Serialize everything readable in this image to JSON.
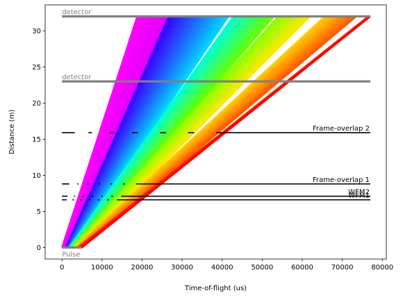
{
  "chart_data": {
    "type": "line",
    "xlabel": "Time-of-flight (us)",
    "ylabel": "Distance (m)",
    "xlim": [
      -4200,
      81000
    ],
    "ylim": [
      -1.6,
      33.6
    ],
    "xticks": [
      0,
      10000,
      20000,
      30000,
      40000,
      50000,
      60000,
      70000,
      80000
    ],
    "yticks": [
      0,
      5,
      10,
      15,
      20,
      25,
      30
    ],
    "grid": false,
    "source_pulse": {
      "label": "Pulse",
      "distance": 0,
      "t_start": 0,
      "t_end": 5000
    },
    "detectors": [
      {
        "label": "detector",
        "distance": 23,
        "t_start": 0,
        "t_end": 77000
      },
      {
        "label": "detector",
        "distance": 32,
        "t_start": 0,
        "t_end": 77000
      }
    ],
    "choppers": [
      {
        "label": "WFM1",
        "distance": 6.6,
        "t_start": 0,
        "t_end": 77000,
        "openings": [
          [
            1200,
            2600
          ],
          [
            3000,
            4600
          ],
          [
            5000,
            6700
          ],
          [
            7100,
            8900
          ],
          [
            9300,
            11300
          ],
          [
            11700,
            13700
          ]
        ]
      },
      {
        "label": "WFM2",
        "distance": 7.1,
        "t_start": 0,
        "t_end": 77000,
        "openings": [
          [
            1400,
            3000
          ],
          [
            3300,
            5100
          ],
          [
            5500,
            7400
          ],
          [
            7800,
            9800
          ],
          [
            10200,
            12300
          ],
          [
            12700,
            14800
          ]
        ]
      },
      {
        "label": "Frame-overlap 1",
        "distance": 8.8,
        "t_start": 0,
        "t_end": 77000,
        "openings": [
          [
            1800,
            3800
          ],
          [
            4100,
            6300
          ],
          [
            6700,
            9100
          ],
          [
            9500,
            12100
          ],
          [
            12500,
            15300
          ],
          [
            15700,
            18500
          ]
        ]
      },
      {
        "label": "Frame-overlap 2",
        "distance": 15.9,
        "t_start": 0,
        "t_end": 77000,
        "openings": [
          [
            3200,
            6600
          ],
          [
            7500,
            11800
          ],
          [
            13000,
            17500
          ],
          [
            19000,
            24500
          ],
          [
            26000,
            31500
          ],
          [
            33000,
            38500
          ]
        ]
      }
    ],
    "subframes": [
      {
        "t_start": [
          0,
          1200
        ],
        "t_end_at_32m": [
          18800,
          28000
        ],
        "colors": [
          "#ff00ff",
          "#dd00ff"
        ]
      },
      {
        "t_start": [
          1000,
          2400
        ],
        "t_end_at_32m": [
          26700,
          41600
        ],
        "colors": [
          "#3a00ff",
          "#00d8ff"
        ]
      },
      {
        "t_start": [
          1800,
          3400
        ],
        "t_end_at_32m": [
          42800,
          52900
        ],
        "colors": [
          "#00ffd8",
          "#66ff00"
        ]
      },
      {
        "t_start": [
          2500,
          4300
        ],
        "t_end_at_32m": [
          54000,
          62000
        ],
        "colors": [
          "#88ff00",
          "#ffe800"
        ]
      },
      {
        "t_start": [
          3200,
          5000
        ],
        "t_end_at_32m": [
          65600,
          73500
        ],
        "colors": [
          "#ffd000",
          "#ff5a00"
        ]
      },
      {
        "t_start": [
          4000,
          5000
        ],
        "t_end_at_32m": [
          76500,
          77000
        ],
        "colors": [
          "#ff3000",
          "#ff0000"
        ]
      }
    ],
    "colors": {
      "chopper": "#000000",
      "detector": "#808080",
      "pulse": "#808080"
    }
  }
}
